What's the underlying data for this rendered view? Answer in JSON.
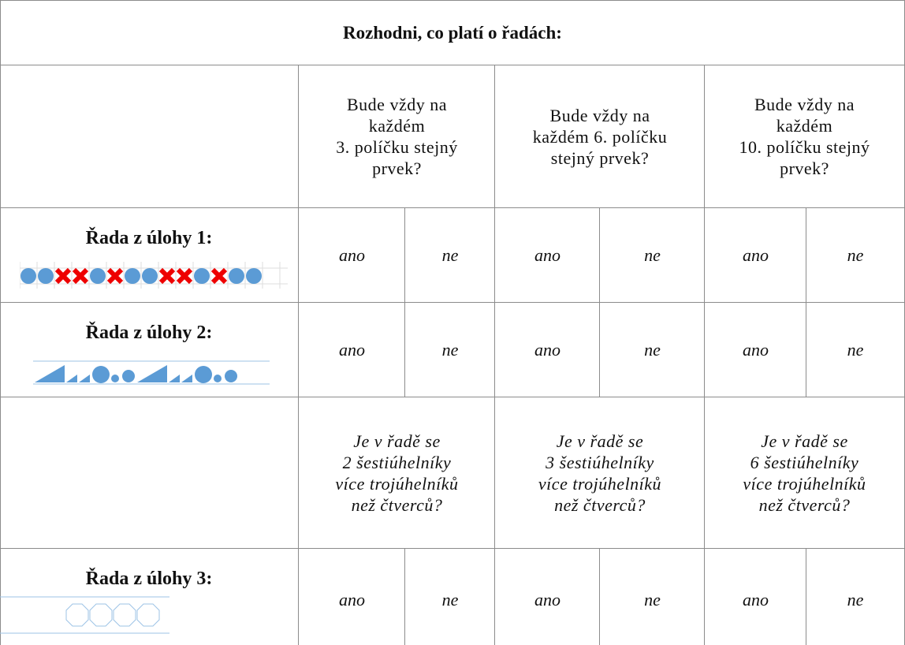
{
  "title": "Rozhodni,  co platí o řadách:",
  "sections": [
    {
      "questions": [
        "Bude vždy na\nkaždém\n3. políčku stejný\nprvek?",
        "Bude vždy na\nkaždém 6. políčku\nstejný prvek?",
        "Bude vždy na\nkaždém\n10. políčku stejný\nprvek?"
      ],
      "rows": [
        {
          "label": "Řada z úlohy 1:",
          "answers": [
            "ano",
            "ne",
            "ano",
            "ne",
            "ano",
            "ne"
          ]
        },
        {
          "label": "Řada z úlohy 2:",
          "answers": [
            "ano",
            "ne",
            "ano",
            "ne",
            "ano",
            "ne"
          ]
        }
      ]
    },
    {
      "questions": [
        "Je v řadě se\n2 šestiúhelníky\nvíce trojúhelníků\nnež čtverců?",
        "Je v řadě se\n3 šestiúhelníky\nvíce trojúhelníků\nnež čtverců?",
        "Je v řadě se\n6 šestiúhelníky\nvíce trojúhelníků\nnež čtverců?"
      ],
      "rows": [
        {
          "label": "Řada z úlohy 3:",
          "answers": [
            "ano",
            "ne",
            "ano",
            "ne",
            "ano",
            "ne"
          ]
        }
      ]
    }
  ]
}
